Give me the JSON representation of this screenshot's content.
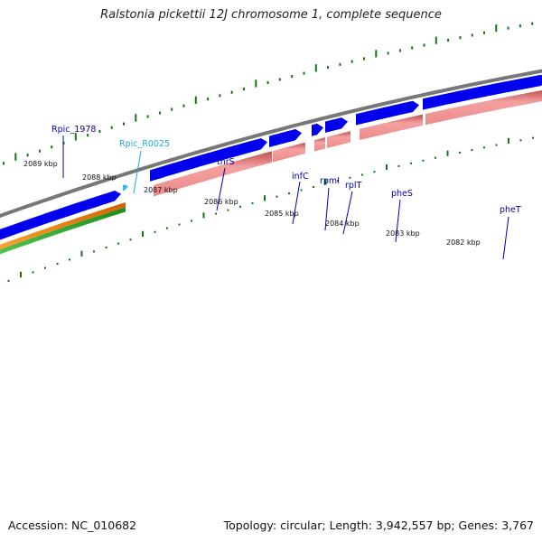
{
  "title": "Ralstonia pickettii 12J chromosome 1, complete sequence",
  "footer": {
    "accession": "Accession: NC_010682",
    "summary": "Topology: circular; Length: 3,942,557 bp; Genes: 3,767"
  },
  "colors": {
    "gene_label": "#0000aa",
    "rna_label": "#22aacc",
    "cds_feature": "#0000ee",
    "gene_feature": "#e88080",
    "rna_feature": "#33bbee",
    "ticks": "#117711",
    "backbone": "#777777"
  },
  "kbp_ticks": [
    "2089 kbp",
    "2088 kbp",
    "2087 kbp",
    "2086 kbp",
    "2085 kbp",
    "2084 kbp",
    "2083 kbp",
    "2082 kbp"
  ],
  "genes": [
    {
      "name": "Rpic_1978",
      "type": "gene"
    },
    {
      "name": "Rpic_R0025",
      "type": "rna"
    },
    {
      "name": "thrS",
      "type": "gene"
    },
    {
      "name": "infC",
      "type": "gene"
    },
    {
      "name": "rpmI",
      "type": "gene"
    },
    {
      "name": "rplT",
      "type": "gene"
    },
    {
      "name": "pheS",
      "type": "gene"
    },
    {
      "name": "pheT",
      "type": "gene"
    }
  ]
}
